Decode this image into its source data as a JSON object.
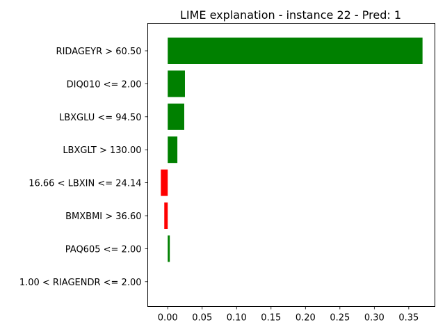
{
  "chart_data": {
    "type": "bar",
    "orientation": "horizontal",
    "title": "LIME explanation - instance 22 - Pred: 1",
    "xlabel": "",
    "ylabel": "",
    "xlim": [
      -0.029,
      0.388
    ],
    "xticks": [
      0.0,
      0.05,
      0.1,
      0.15,
      0.2,
      0.25,
      0.3,
      0.35
    ],
    "xtick_labels": [
      "0.00",
      "0.05",
      "0.10",
      "0.15",
      "0.20",
      "0.25",
      "0.30",
      "0.35"
    ],
    "grid": false,
    "legend": "none",
    "positive_color": "#008000",
    "negative_color": "#ff0000",
    "categories": [
      "RIDAGEYR > 60.50",
      "DIQ010 <= 2.00",
      "LBXGLU <= 94.50",
      "LBXGLT > 130.00",
      "16.66 < LBXIN <= 24.14",
      "BMXBMI > 36.60",
      "PAQ605 <= 2.00",
      "1.00 < RIAGENDR <= 2.00"
    ],
    "values": [
      0.37,
      0.025,
      0.024,
      0.014,
      -0.01,
      -0.005,
      0.003,
      0.0
    ]
  }
}
